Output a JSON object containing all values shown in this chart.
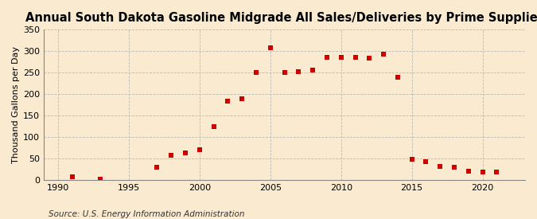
{
  "title": "Annual South Dakota Gasoline Midgrade All Sales/Deliveries by Prime Supplier",
  "ylabel": "Thousand Gallons per Day",
  "source": "Source: U.S. Energy Information Administration",
  "background_color": "#faebd0",
  "marker_color": "#cc0000",
  "years": [
    1991,
    1993,
    1997,
    1998,
    1999,
    2000,
    2001,
    2002,
    2003,
    2004,
    2005,
    2006,
    2007,
    2008,
    2009,
    2010,
    2011,
    2012,
    2013,
    2014,
    2015,
    2016,
    2017,
    2018,
    2019,
    2020,
    2021
  ],
  "values": [
    8,
    2,
    29,
    57,
    62,
    70,
    124,
    183,
    188,
    250,
    307,
    250,
    252,
    255,
    285,
    285,
    285,
    283,
    293,
    238,
    47,
    43,
    32,
    30,
    20,
    18,
    18
  ],
  "xlim": [
    1989,
    2023
  ],
  "ylim": [
    0,
    350
  ],
  "yticks": [
    0,
    50,
    100,
    150,
    200,
    250,
    300,
    350
  ],
  "xticks": [
    1990,
    1995,
    2000,
    2005,
    2010,
    2015,
    2020
  ],
  "grid_color": "#bbbbbb",
  "title_fontsize": 10.5,
  "label_fontsize": 8,
  "tick_fontsize": 8,
  "source_fontsize": 7.5
}
